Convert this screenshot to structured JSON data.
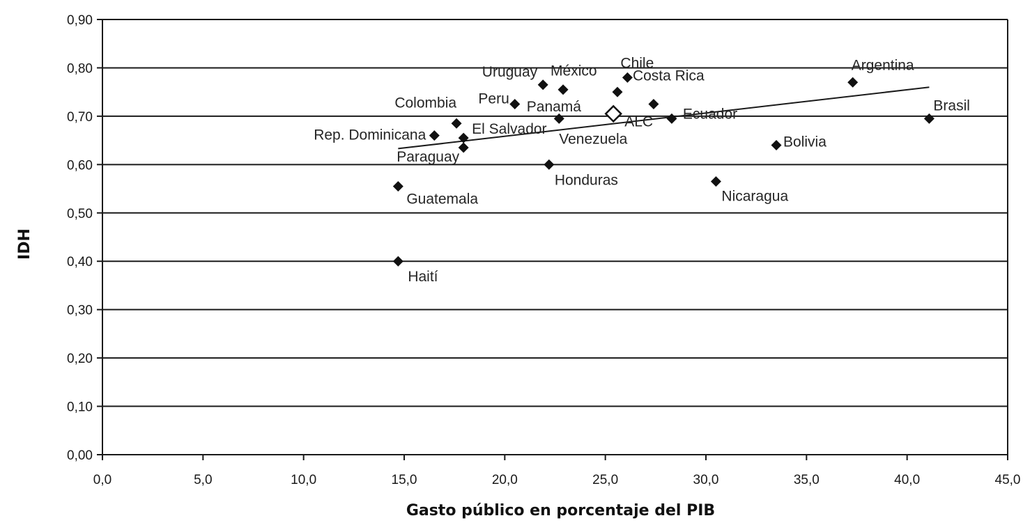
{
  "chart_data": {
    "type": "scatter",
    "xlabel": "Gasto público en porcentaje del PIB",
    "ylabel": "IDH",
    "xlim": [
      0,
      45
    ],
    "ylim": [
      0,
      0.9
    ],
    "x_ticks": [
      "0,0",
      "5,0",
      "10,0",
      "15,0",
      "20,0",
      "25,0",
      "30,0",
      "35,0",
      "40,0",
      "45,0"
    ],
    "y_ticks": [
      "0,00",
      "0,10",
      "0,20",
      "0,30",
      "0,40",
      "0,50",
      "0,60",
      "0,70",
      "0,80",
      "0,90"
    ],
    "grid": "horizontal",
    "points": [
      {
        "label": "Argentina",
        "x": 37.3,
        "y": 0.77
      },
      {
        "label": "Brasil",
        "x": 41.1,
        "y": 0.695
      },
      {
        "label": "Bolivia",
        "x": 33.5,
        "y": 0.64
      },
      {
        "label": "Nicaragua",
        "x": 30.5,
        "y": 0.565
      },
      {
        "label": "Ecuador",
        "x": 28.3,
        "y": 0.695
      },
      {
        "label": "Costa Rica",
        "x": 27.4,
        "y": 0.725
      },
      {
        "label": "Chile",
        "x": 26.1,
        "y": 0.78
      },
      {
        "label": "México",
        "x": 22.9,
        "y": 0.755
      },
      {
        "label": "Uruguay",
        "x": 21.9,
        "y": 0.765
      },
      {
        "label": "Panamá",
        "x": 25.6,
        "y": 0.75
      },
      {
        "label": "Venezuela",
        "x": 22.7,
        "y": 0.695
      },
      {
        "label": "Peru",
        "x": 20.5,
        "y": 0.725
      },
      {
        "label": "Honduras",
        "x": 22.2,
        "y": 0.6
      },
      {
        "label": "Colombia",
        "x": 17.6,
        "y": 0.685
      },
      {
        "label": "El Salvador",
        "x": 17.95,
        "y": 0.655
      },
      {
        "label": "Rep. Dominicana",
        "x": 16.5,
        "y": 0.66
      },
      {
        "label": "Paraguay",
        "x": 17.95,
        "y": 0.635
      },
      {
        "label": "Guatemala",
        "x": 14.7,
        "y": 0.555
      },
      {
        "label": "Haití",
        "x": 14.7,
        "y": 0.4
      }
    ],
    "average_point": {
      "label": "ALC",
      "x": 25.4,
      "y": 0.705
    },
    "trendline": {
      "x": [
        14.7,
        41.1
      ],
      "y": [
        0.633,
        0.76
      ]
    }
  }
}
